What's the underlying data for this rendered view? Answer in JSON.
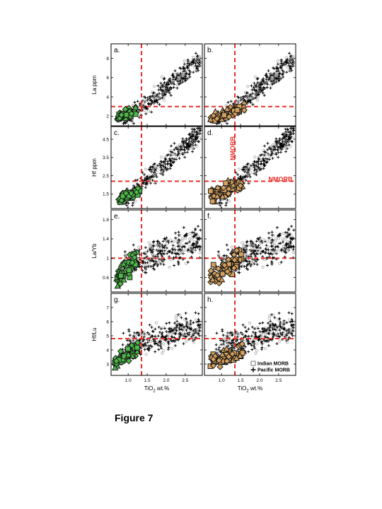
{
  "figure": {
    "caption": "Figure 7"
  },
  "colors": {
    "refline": "#e8302a",
    "green_fill": "#4fb84a",
    "tan_fill": "#d4a15f",
    "marker_edge": "#111111",
    "indian_edge": "#a8a8a8",
    "pacific": "#000000",
    "annotation": "#e8302a"
  },
  "chart_data": [
    {
      "panel_label": "a.",
      "ylabel": "La  ppm",
      "yticks": [
        2,
        4,
        6,
        8
      ],
      "ylim": [
        1,
        9.5
      ],
      "xlim": [
        0.55,
        2.95
      ],
      "xticks": [
        1.0,
        1.5,
        2.0,
        2.5
      ],
      "show_xticklabels": false,
      "ref_x": 1.35,
      "ref_y": 3.0,
      "highlight": "green",
      "trend": {
        "x0": 1.2,
        "y0": 2.4,
        "slope": 3.2,
        "ymax": 9.3
      },
      "highlight_cluster": {
        "x0": 0.7,
        "x1": 1.2,
        "y0": 1.3,
        "y1": 3.2,
        "n": 55
      }
    },
    {
      "panel_label": "b.",
      "ylabel": "",
      "yticks": [
        2,
        4,
        6,
        8
      ],
      "ylim": [
        1,
        9.5
      ],
      "xlim": [
        0.55,
        2.95
      ],
      "xticks": [
        1.0,
        1.5,
        2.0,
        2.5
      ],
      "show_xticklabels": false,
      "ref_x": 1.35,
      "ref_y": 3.0,
      "highlight": "tan",
      "trend": {
        "x0": 1.2,
        "y0": 2.4,
        "slope": 3.2,
        "ymax": 9.3
      },
      "highlight_cluster": {
        "x0": 0.7,
        "x1": 1.6,
        "y0": 1.2,
        "y1": 3.4,
        "n": 55
      }
    },
    {
      "panel_label": "c.",
      "ylabel": "Hf  ppm",
      "yticks": [
        1.5,
        2.5,
        3.5,
        4.5
      ],
      "ylim": [
        0.7,
        5.2
      ],
      "xlim": [
        0.55,
        2.95
      ],
      "xticks": [
        1.0,
        1.5,
        2.0,
        2.5
      ],
      "show_xticklabels": false,
      "ref_x": 1.35,
      "ref_y": 2.2,
      "highlight": "green",
      "trend": {
        "x0": 0.8,
        "y0": 1.0,
        "slope": 1.85,
        "ymax": 5.1
      },
      "highlight_cluster": {
        "x0": 0.75,
        "x1": 1.3,
        "y0": 0.9,
        "y1": 1.9,
        "n": 55
      }
    },
    {
      "panel_label": "d.",
      "ylabel": "",
      "yticks": [
        1.5,
        2.5,
        3.5,
        4.5
      ],
      "ylim": [
        0.7,
        5.2
      ],
      "xlim": [
        0.55,
        2.95
      ],
      "xticks": [
        1.0,
        1.5,
        2.0,
        2.5
      ],
      "show_xticklabels": false,
      "ref_x": 1.35,
      "ref_y": 2.2,
      "highlight": "tan",
      "trend": {
        "x0": 0.8,
        "y0": 1.0,
        "slope": 1.85,
        "ymax": 5.1
      },
      "highlight_cluster": {
        "x0": 0.7,
        "x1": 1.55,
        "y0": 0.9,
        "y1": 2.5,
        "n": 60
      },
      "annotations": [
        {
          "text": "NMORB",
          "x": 1.35,
          "y": 4.0,
          "rotate": -90
        },
        {
          "text": "NMORB",
          "x": 2.55,
          "y": 2.2,
          "rotate": 0
        }
      ]
    },
    {
      "panel_label": "e.",
      "ylabel": "La/Yb",
      "yticks": [
        0.6,
        1.0,
        1.4,
        1.8
      ],
      "ylim": [
        0.3,
        2.0
      ],
      "xlim": [
        0.55,
        2.95
      ],
      "xticks": [
        1.0,
        1.5,
        2.0,
        2.5
      ],
      "show_xticklabels": false,
      "ref_x": 1.35,
      "ref_y": 1.0,
      "highlight": "green",
      "trend": {
        "x0": 1.0,
        "y0": 0.9,
        "slope": 0.25,
        "ymax": 2.0,
        "spread": 0.32
      },
      "highlight_cluster": {
        "x0": 0.7,
        "x1": 1.25,
        "y0": 0.4,
        "y1": 1.2,
        "n": 60
      }
    },
    {
      "panel_label": "f.",
      "ylabel": "",
      "yticks": [
        0.6,
        1.0,
        1.4,
        1.8
      ],
      "ylim": [
        0.3,
        2.0
      ],
      "xlim": [
        0.55,
        2.95
      ],
      "xticks": [
        1.0,
        1.5,
        2.0,
        2.5
      ],
      "show_xticklabels": false,
      "ref_x": 1.35,
      "ref_y": 1.0,
      "highlight": "tan",
      "trend": {
        "x0": 1.0,
        "y0": 0.9,
        "slope": 0.25,
        "ymax": 2.0,
        "spread": 0.32
      },
      "highlight_cluster": {
        "x0": 0.7,
        "x1": 1.55,
        "y0": 0.4,
        "y1": 1.2,
        "n": 60
      }
    },
    {
      "panel_label": "g.",
      "ylabel": "Hf/Lu",
      "yticks": [
        3,
        4,
        5,
        6,
        7
      ],
      "ylim": [
        2.2,
        8.0
      ],
      "xlim": [
        0.55,
        2.95
      ],
      "xticks": [
        1.0,
        1.5,
        2.0,
        2.5
      ],
      "show_xticklabels": true,
      "ref_x": 1.35,
      "ref_y": 4.8,
      "highlight": "green",
      "trend": {
        "x0": 1.0,
        "y0": 4.2,
        "slope": 0.8,
        "ymax": 8.0,
        "spread": 1.0
      },
      "highlight_cluster": {
        "x0": 0.65,
        "x1": 1.25,
        "y0": 2.6,
        "y1": 4.6,
        "n": 60
      }
    },
    {
      "panel_label": "h.",
      "ylabel": "",
      "yticks": [
        3,
        4,
        5,
        6,
        7
      ],
      "ylim": [
        2.2,
        8.0
      ],
      "xlim": [
        0.55,
        2.95
      ],
      "xticks": [
        1.0,
        1.5,
        2.0,
        2.5
      ],
      "show_xticklabels": true,
      "ref_x": 1.35,
      "ref_y": 4.8,
      "highlight": "tan",
      "trend": {
        "x0": 1.0,
        "y0": 4.2,
        "slope": 0.8,
        "ymax": 8.0,
        "spread": 1.0
      },
      "highlight_cluster": {
        "x0": 0.7,
        "x1": 1.6,
        "y0": 2.5,
        "y1": 4.6,
        "n": 65
      },
      "legend": [
        {
          "marker": "square",
          "label": "Indian MORB"
        },
        {
          "marker": "plus",
          "label": "Pacific MORB"
        }
      ]
    }
  ],
  "xlabel": {
    "main": "TiO",
    "sub": "2",
    "unit": " wt.%"
  }
}
